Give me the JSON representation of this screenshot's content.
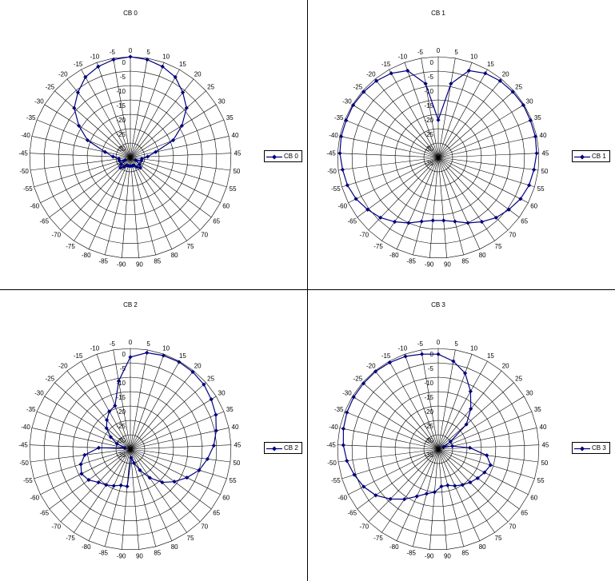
{
  "series_color": "#00007F",
  "chart_data": [
    {
      "type": "line",
      "subtype": "radar",
      "title": "CB 0",
      "legend_label": "CB 0",
      "legend_position": "right",
      "categories": [
        "-90",
        "-85",
        "-80",
        "-75",
        "-70",
        "-65",
        "-60",
        "-55",
        "-50",
        "-45",
        "-40",
        "-35",
        "-30",
        "-25",
        "-20",
        "-15",
        "-10",
        "-5",
        "0",
        "5",
        "10",
        "15",
        "20",
        "25",
        "30",
        "35",
        "40",
        "45",
        "50",
        "55",
        "60",
        "65",
        "70",
        "75",
        "80",
        "85",
        "90"
      ],
      "radial_tick_labels": [
        "0",
        "-5",
        "-10",
        "-15",
        "-20",
        "-25",
        "-30",
        "-35"
      ],
      "rlim": [
        -35,
        0
      ],
      "series": [
        {
          "name": "CB 0",
          "values": [
            -32,
            -32,
            -32,
            -31,
            -30,
            -31,
            -33,
            -31,
            -31,
            -29,
            -26,
            -19,
            -14,
            -9,
            -6,
            -3,
            -1.5,
            -0.5,
            0,
            -0.5,
            -1.5,
            -3,
            -6,
            -9,
            -14,
            -19,
            -26,
            -29,
            -31,
            -31,
            -33,
            -31,
            -30,
            -31,
            -32,
            -32,
            -32
          ]
        }
      ]
    },
    {
      "type": "line",
      "subtype": "radar",
      "title": "CB 1",
      "legend_label": "CB 1",
      "legend_position": "right",
      "categories": [
        "-90",
        "-85",
        "-80",
        "-75",
        "-70",
        "-65",
        "-60",
        "-55",
        "-50",
        "-45",
        "-40",
        "-35",
        "-30",
        "-25",
        "-20",
        "-15",
        "-10",
        "-5",
        "0",
        "5",
        "10",
        "15",
        "20",
        "25",
        "30",
        "35",
        "40",
        "45",
        "50",
        "55",
        "60",
        "65",
        "70",
        "75",
        "80",
        "85",
        "90"
      ],
      "radial_tick_labels": [
        "0",
        "-5",
        "-10",
        "-15",
        "-20",
        "-25",
        "-30",
        "-35"
      ],
      "rlim": [
        -35,
        0
      ],
      "series": [
        {
          "name": "CB 1",
          "values": [
            -13,
            -12,
            -10,
            -8,
            -6,
            -4.5,
            -3,
            -2,
            -1.5,
            -0.8,
            -0.5,
            -0.5,
            -0.3,
            -0.5,
            -0.8,
            -1.5,
            -3,
            -9,
            -22,
            -9,
            -3,
            -1.5,
            -0.8,
            -0.5,
            -0.3,
            -0.5,
            -0.5,
            -0.8,
            -1.5,
            -2,
            -3,
            -4.5,
            -6,
            -8,
            -10,
            -12,
            -13
          ]
        }
      ]
    },
    {
      "type": "line",
      "subtype": "radar",
      "title": "CB 2",
      "legend_label": "CB 2",
      "legend_position": "right",
      "categories": [
        "-90",
        "-85",
        "-80",
        "-75",
        "-70",
        "-65",
        "-60",
        "-55",
        "-50",
        "-45",
        "-40",
        "-35",
        "-30",
        "-25",
        "-20",
        "-15",
        "-10",
        "-5",
        "0",
        "5",
        "10",
        "15",
        "20",
        "25",
        "30",
        "35",
        "40",
        "45",
        "50",
        "55",
        "60",
        "65",
        "70",
        "75",
        "80",
        "85",
        "90"
      ],
      "radial_tick_labels": [
        "0",
        "-5",
        "-10",
        "-15",
        "-20",
        "-25",
        "-30",
        "-35"
      ],
      "rlim": [
        -35,
        0
      ],
      "series": [
        {
          "name": "CB 2",
          "values": [
            -22,
            -22,
            -21,
            -20,
            -19,
            -17,
            -16,
            -17,
            -19,
            -24,
            -33,
            -30,
            -27,
            -24,
            -22,
            -20,
            -19,
            -11,
            -3,
            -1,
            -0.5,
            -0.3,
            -0.5,
            -1,
            -2,
            -3,
            -4.5,
            -6,
            -8,
            -10,
            -13,
            -16,
            -19,
            -23,
            -27,
            -30,
            -32
          ]
        }
      ]
    },
    {
      "type": "line",
      "subtype": "radar",
      "title": "CB 3",
      "legend_label": "CB 3",
      "legend_position": "right",
      "categories": [
        "-90",
        "-85",
        "-80",
        "-75",
        "-70",
        "-65",
        "-60",
        "-55",
        "-50",
        "-45",
        "-40",
        "-35",
        "-30",
        "-25",
        "-20",
        "-15",
        "-10",
        "-5",
        "0",
        "5",
        "10",
        "15",
        "20",
        "25",
        "30",
        "35",
        "40",
        "45",
        "50",
        "55",
        "60",
        "65",
        "70",
        "75",
        "80",
        "85",
        "90"
      ],
      "radial_tick_labels": [
        "0",
        "-5",
        "-10",
        "-15",
        "-20",
        "-25",
        "-30",
        "-35"
      ],
      "rlim": [
        -35,
        0
      ],
      "series": [
        {
          "name": "CB 3",
          "values": [
            -20,
            -19,
            -17,
            -14,
            -11,
            -8,
            -6,
            -4.5,
            -3,
            -2,
            -1.3,
            -0.8,
            -0.5,
            -0.4,
            -0.3,
            -0.5,
            -0.8,
            -1.5,
            -2,
            -4,
            -7,
            -12,
            -17,
            -22,
            -30,
            -33,
            -30,
            -24,
            -18,
            -16,
            -17,
            -18,
            -19,
            -20,
            -21,
            -22,
            -22
          ]
        }
      ]
    }
  ]
}
